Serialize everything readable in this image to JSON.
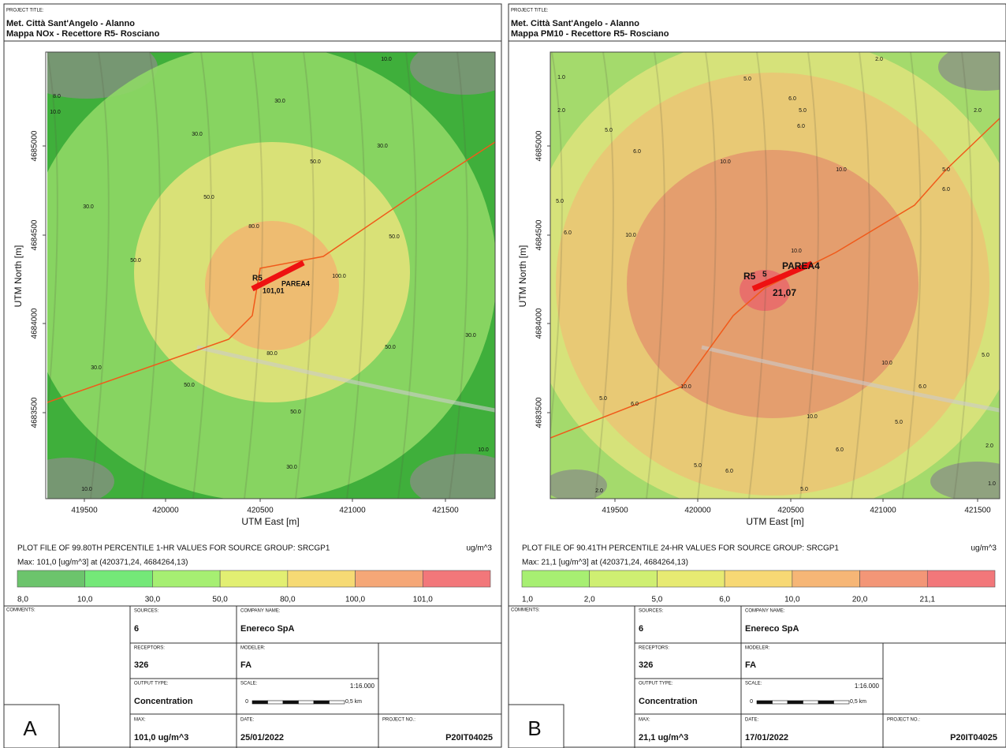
{
  "panels": [
    {
      "letter": "A",
      "project_title_label": "PROJECT TITLE:",
      "title": "Met. Città Sant'Angelo - Alanno",
      "subtitle": "Mappa NOx - Recettore R5- Rosciano",
      "y_axis_label": "UTM North [m]",
      "x_axis_label": "UTM East [m]",
      "yticks": [
        4685000,
        4684500,
        4684000,
        4683500
      ],
      "xticks": [
        419500,
        420000,
        420500,
        421000,
        421500
      ],
      "contour_labels": [
        "8.0",
        "10.0",
        "30.0",
        "30.0",
        "30.0",
        "50.0",
        "50.0",
        "80.0",
        "100.0",
        "50.0",
        "30.0",
        "50.0",
        "80.0",
        "50.0",
        "30.0",
        "30.0",
        "50.0",
        "50.0",
        "30.0",
        "10.0",
        "10.0",
        "10.0"
      ],
      "map_labels": [
        "R5",
        "PAREA4",
        "101,01"
      ],
      "plot_file": "PLOT FILE OF 99.80TH PERCENTILE 1-HR VALUES FOR SOURCE GROUP: SRCGP1",
      "unit": "ug/m^3",
      "max_line": "Max:  101,0  [ug/m^3]  at  (420371,24, 4684264,13)",
      "legend": {
        "labels": [
          "8,0",
          "10,0",
          "30,0",
          "50,0",
          "80,0",
          "100,0",
          "101,0"
        ],
        "colors": [
          "#6cc46c",
          "#74e878",
          "#a6ef72",
          "#e2ef72",
          "#f6da74",
          "#f5a777",
          "#f2777a"
        ]
      },
      "info": {
        "comments_label": "COMMENTS:",
        "sources_label": "SOURCES:",
        "sources": "6",
        "company_label": "COMPANY NAME:",
        "company": "Enereco SpA",
        "receptors_label": "RECEPTORS:",
        "receptors": "326",
        "modeler_label": "MODELER:",
        "modeler": "FA",
        "output_type_label": "OUTPUT TYPE:",
        "output_type": "Concentration",
        "scale_label": "SCALE:",
        "scale": "1:16.000",
        "scale_start": "0",
        "scale_end": "0,5 km",
        "max_label": "MAX:",
        "max": "101,0 ug/m^3",
        "date_label": "DATE:",
        "date": "25/01/2022",
        "project_no_label": "PROJECT NO.:",
        "project_no": "P20IT04025"
      }
    },
    {
      "letter": "B",
      "project_title_label": "PROJECT TITLE:",
      "title": "Met. Città Sant'Angelo - Alanno",
      "subtitle": "Mappa PM10 - Recettore R5- Rosciano",
      "y_axis_label": "UTM North [m]",
      "x_axis_label": "UTM East [m]",
      "yticks": [
        4685000,
        4684500,
        4684000,
        4683500
      ],
      "xticks": [
        419500,
        420000,
        420500,
        421000,
        421500
      ],
      "contour_labels": [
        "1.0",
        "2.0",
        "2.0",
        "2.0",
        "5.0",
        "6.0",
        "5.0",
        "6.0",
        "5.0",
        "6.0",
        "10.0",
        "10.0",
        "5.0",
        "6.0",
        "5.0",
        "6.0",
        "10.0",
        "10.0",
        "10.0",
        "5.0",
        "6.0",
        "10.0",
        "5.0",
        "6.0",
        "10.0",
        "5.0",
        "6.0",
        "5.0",
        "6.0",
        "2.0",
        "5.0",
        "2.0",
        "1.0"
      ],
      "map_labels": [
        "R5",
        "5",
        "PAREA4",
        "21,07"
      ],
      "plot_file": "PLOT FILE OF 90.41TH PERCENTILE 24-HR VALUES FOR SOURCE GROUP: SRCGP1",
      "unit": "ug/m^3",
      "max_line": "Max:  21,1  [ug/m^3]  at  (420371,24, 4684264,13)",
      "legend": {
        "labels": [
          "1,0",
          "2,0",
          "5,0",
          "6,0",
          "10,0",
          "20,0",
          "21,1"
        ],
        "colors": [
          "#a7ef72",
          "#cfef72",
          "#e7ea72",
          "#f7d874",
          "#f6b676",
          "#f39677",
          "#f2777a"
        ]
      },
      "info": {
        "comments_label": "COMMENTS:",
        "sources_label": "SOURCES:",
        "sources": "6",
        "company_label": "COMPANY NAME:",
        "company": "Enereco SpA",
        "receptors_label": "RECEPTORS:",
        "receptors": "326",
        "modeler_label": "MODELER:",
        "modeler": "FA",
        "output_type_label": "OUTPUT TYPE:",
        "output_type": "Concentration",
        "scale_label": "SCALE:",
        "scale": "1:16.000",
        "scale_start": "0",
        "scale_end": "0,5 km",
        "max_label": "MAX:",
        "max": "21,1 ug/m^3",
        "date_label": "DATE:",
        "date": "17/01/2022",
        "project_no_label": "PROJECT NO.:",
        "project_no": "P20IT04025"
      }
    }
  ]
}
